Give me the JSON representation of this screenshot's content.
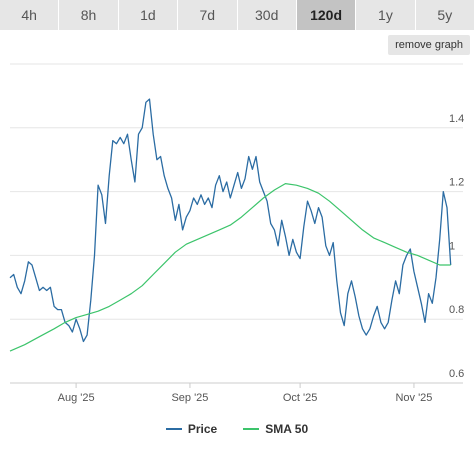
{
  "range_buttons": [
    {
      "label": "4h",
      "active": false
    },
    {
      "label": "8h",
      "active": false
    },
    {
      "label": "1d",
      "active": false
    },
    {
      "label": "7d",
      "active": false
    },
    {
      "label": "30d",
      "active": false
    },
    {
      "label": "120d",
      "active": true
    },
    {
      "label": "1y",
      "active": false
    },
    {
      "label": "5y",
      "active": false
    }
  ],
  "remove_graph_label": "remove graph",
  "chart_data": {
    "type": "line",
    "title": "",
    "xlabel": "",
    "ylabel": "",
    "ylim": [
      0.6,
      1.6
    ],
    "y_ticks": [
      "0.6",
      "0.8",
      "1",
      "1.2",
      "1.4"
    ],
    "x_ticks": [
      {
        "label": "Aug '25",
        "date": "2025-08-01"
      },
      {
        "label": "Sep '25",
        "date": "2025-09-01"
      },
      {
        "label": "Oct '25",
        "date": "2025-10-01"
      },
      {
        "label": "Nov '25",
        "date": "2025-11-01"
      }
    ],
    "x_range": [
      "2025-07-14",
      "2025-11-10"
    ],
    "grid": true,
    "legend_position": "bottom-center",
    "series": [
      {
        "name": "Price",
        "color": "#2b6ca3",
        "points": [
          [
            "2025-07-14",
            0.93
          ],
          [
            "2025-07-15",
            0.94
          ],
          [
            "2025-07-16",
            0.9
          ],
          [
            "2025-07-17",
            0.88
          ],
          [
            "2025-07-18",
            0.92
          ],
          [
            "2025-07-19",
            0.98
          ],
          [
            "2025-07-20",
            0.97
          ],
          [
            "2025-07-21",
            0.93
          ],
          [
            "2025-07-22",
            0.89
          ],
          [
            "2025-07-23",
            0.9
          ],
          [
            "2025-07-24",
            0.89
          ],
          [
            "2025-07-25",
            0.9
          ],
          [
            "2025-07-26",
            0.84
          ],
          [
            "2025-07-27",
            0.83
          ],
          [
            "2025-07-28",
            0.83
          ],
          [
            "2025-07-29",
            0.79
          ],
          [
            "2025-07-30",
            0.78
          ],
          [
            "2025-07-31",
            0.76
          ],
          [
            "2025-08-01",
            0.8
          ],
          [
            "2025-08-02",
            0.77
          ],
          [
            "2025-08-03",
            0.73
          ],
          [
            "2025-08-04",
            0.75
          ],
          [
            "2025-08-05",
            0.86
          ],
          [
            "2025-08-06",
            1.0
          ],
          [
            "2025-08-07",
            1.22
          ],
          [
            "2025-08-08",
            1.19
          ],
          [
            "2025-08-09",
            1.1
          ],
          [
            "2025-08-10",
            1.25
          ],
          [
            "2025-08-11",
            1.36
          ],
          [
            "2025-08-12",
            1.35
          ],
          [
            "2025-08-13",
            1.37
          ],
          [
            "2025-08-14",
            1.35
          ],
          [
            "2025-08-15",
            1.38
          ],
          [
            "2025-08-16",
            1.3
          ],
          [
            "2025-08-17",
            1.23
          ],
          [
            "2025-08-18",
            1.38
          ],
          [
            "2025-08-19",
            1.4
          ],
          [
            "2025-08-20",
            1.48
          ],
          [
            "2025-08-21",
            1.49
          ],
          [
            "2025-08-22",
            1.38
          ],
          [
            "2025-08-23",
            1.3
          ],
          [
            "2025-08-24",
            1.31
          ],
          [
            "2025-08-25",
            1.25
          ],
          [
            "2025-08-26",
            1.21
          ],
          [
            "2025-08-27",
            1.18
          ],
          [
            "2025-08-28",
            1.11
          ],
          [
            "2025-08-29",
            1.16
          ],
          [
            "2025-08-30",
            1.08
          ],
          [
            "2025-08-31",
            1.12
          ],
          [
            "2025-09-01",
            1.14
          ],
          [
            "2025-09-02",
            1.18
          ],
          [
            "2025-09-03",
            1.16
          ],
          [
            "2025-09-04",
            1.19
          ],
          [
            "2025-09-05",
            1.16
          ],
          [
            "2025-09-06",
            1.18
          ],
          [
            "2025-09-07",
            1.15
          ],
          [
            "2025-09-08",
            1.22
          ],
          [
            "2025-09-09",
            1.25
          ],
          [
            "2025-09-10",
            1.2
          ],
          [
            "2025-09-11",
            1.23
          ],
          [
            "2025-09-12",
            1.18
          ],
          [
            "2025-09-13",
            1.22
          ],
          [
            "2025-09-14",
            1.26
          ],
          [
            "2025-09-15",
            1.21
          ],
          [
            "2025-09-16",
            1.24
          ],
          [
            "2025-09-17",
            1.31
          ],
          [
            "2025-09-18",
            1.27
          ],
          [
            "2025-09-19",
            1.31
          ],
          [
            "2025-09-20",
            1.23
          ],
          [
            "2025-09-21",
            1.2
          ],
          [
            "2025-09-22",
            1.17
          ],
          [
            "2025-09-23",
            1.1
          ],
          [
            "2025-09-24",
            1.08
          ],
          [
            "2025-09-25",
            1.03
          ],
          [
            "2025-09-26",
            1.11
          ],
          [
            "2025-09-27",
            1.06
          ],
          [
            "2025-09-28",
            1.0
          ],
          [
            "2025-09-29",
            1.05
          ],
          [
            "2025-09-30",
            1.01
          ],
          [
            "2025-10-01",
            0.99
          ],
          [
            "2025-10-02",
            1.09
          ],
          [
            "2025-10-03",
            1.17
          ],
          [
            "2025-10-04",
            1.14
          ],
          [
            "2025-10-05",
            1.1
          ],
          [
            "2025-10-06",
            1.15
          ],
          [
            "2025-10-07",
            1.12
          ],
          [
            "2025-10-08",
            1.03
          ],
          [
            "2025-10-09",
            1.0
          ],
          [
            "2025-10-10",
            1.04
          ],
          [
            "2025-10-11",
            0.92
          ],
          [
            "2025-10-12",
            0.82
          ],
          [
            "2025-10-13",
            0.78
          ],
          [
            "2025-10-14",
            0.88
          ],
          [
            "2025-10-15",
            0.92
          ],
          [
            "2025-10-16",
            0.87
          ],
          [
            "2025-10-17",
            0.81
          ],
          [
            "2025-10-18",
            0.77
          ],
          [
            "2025-10-19",
            0.75
          ],
          [
            "2025-10-20",
            0.77
          ],
          [
            "2025-10-21",
            0.81
          ],
          [
            "2025-10-22",
            0.84
          ],
          [
            "2025-10-23",
            0.79
          ],
          [
            "2025-10-24",
            0.77
          ],
          [
            "2025-10-25",
            0.79
          ],
          [
            "2025-10-26",
            0.86
          ],
          [
            "2025-10-27",
            0.92
          ],
          [
            "2025-10-28",
            0.88
          ],
          [
            "2025-10-29",
            0.97
          ],
          [
            "2025-10-30",
            1.0
          ],
          [
            "2025-10-31",
            1.02
          ],
          [
            "2025-11-01",
            0.95
          ],
          [
            "2025-11-02",
            0.9
          ],
          [
            "2025-11-03",
            0.85
          ],
          [
            "2025-11-04",
            0.79
          ],
          [
            "2025-11-05",
            0.88
          ],
          [
            "2025-11-06",
            0.85
          ],
          [
            "2025-11-07",
            0.93
          ],
          [
            "2025-11-08",
            1.05
          ],
          [
            "2025-11-09",
            1.2
          ],
          [
            "2025-11-10",
            1.15
          ],
          [
            "2025-11-11",
            0.97
          ]
        ]
      },
      {
        "name": "SMA 50",
        "color": "#3cc46b",
        "points": [
          [
            "2025-07-14",
            0.7
          ],
          [
            "2025-07-18",
            0.72
          ],
          [
            "2025-07-22",
            0.745
          ],
          [
            "2025-07-26",
            0.77
          ],
          [
            "2025-07-29",
            0.79
          ],
          [
            "2025-08-01",
            0.805
          ],
          [
            "2025-08-04",
            0.815
          ],
          [
            "2025-08-07",
            0.825
          ],
          [
            "2025-08-10",
            0.84
          ],
          [
            "2025-08-13",
            0.86
          ],
          [
            "2025-08-16",
            0.88
          ],
          [
            "2025-08-19",
            0.905
          ],
          [
            "2025-08-22",
            0.94
          ],
          [
            "2025-08-25",
            0.975
          ],
          [
            "2025-08-28",
            1.01
          ],
          [
            "2025-08-31",
            1.035
          ],
          [
            "2025-09-03",
            1.05
          ],
          [
            "2025-09-06",
            1.065
          ],
          [
            "2025-09-09",
            1.08
          ],
          [
            "2025-09-12",
            1.095
          ],
          [
            "2025-09-15",
            1.12
          ],
          [
            "2025-09-18",
            1.15
          ],
          [
            "2025-09-21",
            1.18
          ],
          [
            "2025-09-24",
            1.205
          ],
          [
            "2025-09-27",
            1.225
          ],
          [
            "2025-09-30",
            1.22
          ],
          [
            "2025-10-03",
            1.21
          ],
          [
            "2025-10-06",
            1.195
          ],
          [
            "2025-10-09",
            1.17
          ],
          [
            "2025-10-12",
            1.14
          ],
          [
            "2025-10-15",
            1.11
          ],
          [
            "2025-10-18",
            1.08
          ],
          [
            "2025-10-21",
            1.055
          ],
          [
            "2025-10-24",
            1.04
          ],
          [
            "2025-10-27",
            1.025
          ],
          [
            "2025-10-30",
            1.01
          ],
          [
            "2025-11-02",
            1.0
          ],
          [
            "2025-11-05",
            0.985
          ],
          [
            "2025-11-08",
            0.97
          ],
          [
            "2025-11-11",
            0.97
          ]
        ]
      }
    ]
  }
}
